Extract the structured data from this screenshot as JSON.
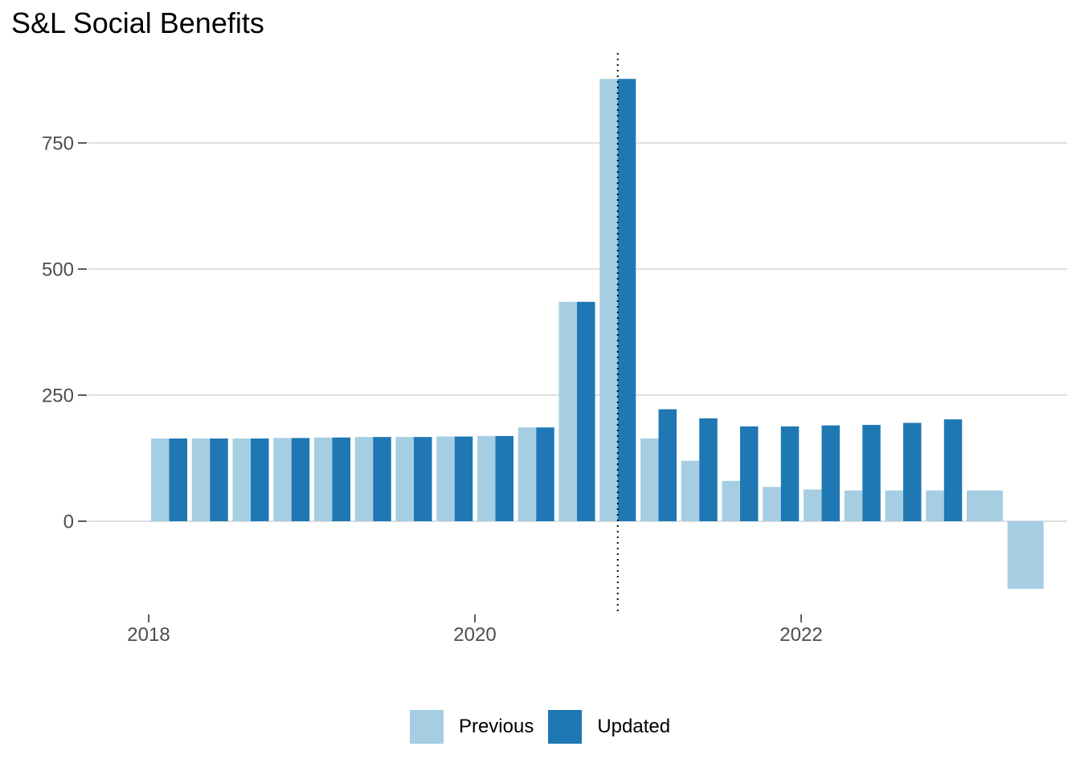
{
  "chart_data": {
    "type": "bar",
    "title": "S&L Social Benefits",
    "xlabel": "",
    "ylabel": "",
    "ylim": [
      -180,
      935
    ],
    "yticks": [
      0,
      250,
      500,
      750
    ],
    "xticks": [
      "2018",
      "2020",
      "2022"
    ],
    "grid": "horizontal",
    "legend_position": "bottom",
    "reference_line": {
      "style": "dotted",
      "at": "2020 Q4"
    },
    "categories": [
      "2018 Q1",
      "2018 Q2",
      "2018 Q3",
      "2018 Q4",
      "2019 Q1",
      "2019 Q2",
      "2019 Q3",
      "2019 Q4",
      "2020 Q1",
      "2020 Q2",
      "2020 Q3",
      "2020 Q4",
      "2021 Q1",
      "2021 Q2",
      "2021 Q3",
      "2021 Q4",
      "2022 Q1",
      "2022 Q2",
      "2022 Q3",
      "2022 Q4",
      "2023 Q1",
      "2023 Q2"
    ],
    "series": [
      {
        "name": "Previous",
        "color": "#a6cee3",
        "values": [
          164,
          164,
          164,
          165,
          166,
          167,
          167,
          168,
          169,
          186,
          435,
          877,
          164,
          120,
          80,
          68,
          63,
          61,
          61,
          61,
          61,
          -134
        ]
      },
      {
        "name": "Updated",
        "color": "#1f78b4",
        "values": [
          164,
          164,
          164,
          165,
          166,
          167,
          167,
          168,
          169,
          186,
          435,
          877,
          222,
          204,
          188,
          188,
          190,
          191,
          195,
          202,
          null,
          null
        ]
      }
    ]
  }
}
